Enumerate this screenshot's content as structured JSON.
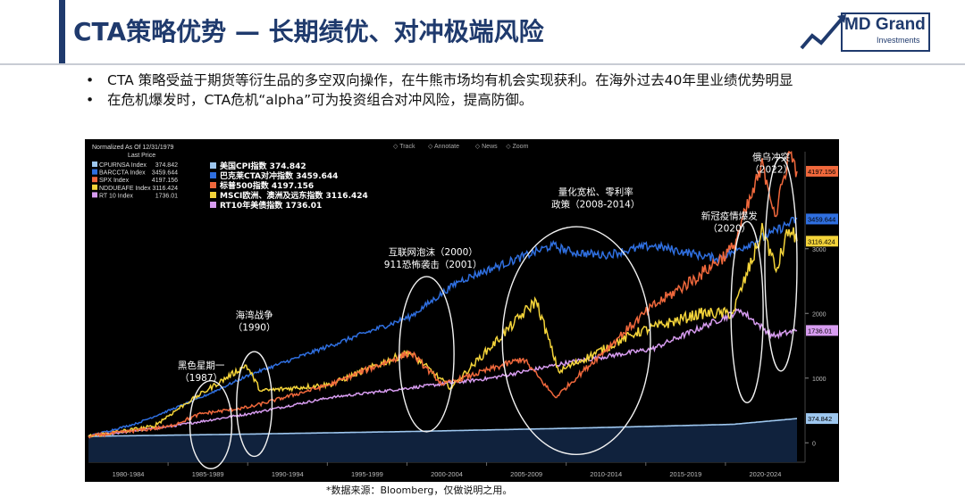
{
  "header": {
    "title": "CTA策略优势 — 长期绩优、对冲极端风险",
    "logo_text": "MD Grand",
    "logo_sub": "Investments"
  },
  "bullets": [
    "CTA 策略受益于期货等衍生品的多空双向操作，在牛熊市场均有机会实现获利。在海外过去40年里业绩优势明显",
    "在危机爆发时，CTA危机“alpha”可为投资组合对冲风险，提高防御。"
  ],
  "bullet_marker": "•",
  "source_note": "*数据来源：Bloomberg，仅做说明之用。",
  "chart_data": {
    "type": "line",
    "title": "",
    "normalized_note": "Normalized As Of 12/31/1979",
    "last_price_label": "Last Price",
    "toolbar": [
      "Track",
      "Annotate",
      "News",
      "Zoom"
    ],
    "x_tick_labels": [
      "1980-1984",
      "1985-1989",
      "1990-1994",
      "1995-1999",
      "2000-2004",
      "2005-2009",
      "2010-2014",
      "2015-2019",
      "2020-2024"
    ],
    "y_ticks": [
      0,
      1000,
      2000,
      3000
    ],
    "ylim": [
      -300,
      4500
    ],
    "xlim": [
      1980,
      2024.5
    ],
    "grid": false,
    "legend_small": [
      {
        "ticker": "CPURNSA Index",
        "value": "374.842",
        "color": "#9ec7ef"
      },
      {
        "ticker": "BARCCTA Index",
        "value": "3459.644",
        "color": "#2f6fe0"
      },
      {
        "ticker": "SPX Index",
        "value": "4197.156",
        "color": "#f0683c"
      },
      {
        "ticker": "NDDUEAFE Index",
        "value": "3116.424",
        "color": "#f4d43a"
      },
      {
        "ticker": "RT 10 Index",
        "value": "1736.01",
        "color": "#d79cf0"
      }
    ],
    "series": [
      {
        "name": "美国CPI指数",
        "last": "374.842",
        "color": "#9ec7ef",
        "x": [
          1980,
          1990,
          2000,
          2010,
          2020,
          2024
        ],
        "values": [
          100,
          135,
          175,
          225,
          285,
          374.842
        ]
      },
      {
        "name": "巴克莱CTA对冲指数",
        "last": "3459.644",
        "color": "#2f6fe0",
        "x": [
          1980,
          1983,
          1987,
          1990,
          1995,
          2000,
          2003,
          2008.8,
          2010,
          2012,
          2015,
          2017,
          2019,
          2020,
          2022.5,
          2024
        ],
        "values": [
          100,
          300,
          700,
          1050,
          1500,
          1950,
          2500,
          3050,
          2950,
          2900,
          3050,
          2950,
          2850,
          2950,
          3250,
          3459.644
        ]
      },
      {
        "name": "标普500指数",
        "last": "4197.156",
        "color": "#f0683c",
        "x": [
          1980,
          1985,
          1987,
          1990,
          1995,
          2000,
          2002,
          2007,
          2009,
          2013,
          2015,
          2018,
          2020,
          2021.9,
          2022.7,
          2023.5,
          2024
        ],
        "values": [
          100,
          250,
          450,
          550,
          900,
          1400,
          900,
          1300,
          700,
          1650,
          2100,
          2600,
          3000,
          4300,
          3500,
          4500,
          4197.156
        ]
      },
      {
        "name": "MSCI欧洲、澳洲及远东指数",
        "last": "3116.424",
        "color": "#f4d43a",
        "x": [
          1980,
          1984,
          1986,
          1989.8,
          1990.7,
          1995,
          1999.9,
          2002.5,
          2007.8,
          2009.2,
          2014,
          2018,
          2020,
          2021.9,
          2022.7,
          2023.5,
          2024
        ],
        "values": [
          100,
          250,
          600,
          1200,
          800,
          900,
          1400,
          850,
          2200,
          1100,
          1700,
          2000,
          2000,
          3300,
          2650,
          3300,
          3116.424
        ]
      },
      {
        "name": "RT10年美债指数",
        "last": "1736.01",
        "color": "#d79cf0",
        "x": [
          1980,
          1985,
          1990,
          1995,
          2000,
          2005,
          2010,
          2015,
          2020.5,
          2022.5,
          2024
        ],
        "values": [
          100,
          250,
          450,
          700,
          850,
          1000,
          1250,
          1450,
          2050,
          1650,
          1736.01
        ]
      }
    ],
    "annotations": [
      {
        "lines": [
          "黑色星期一",
          "（1987）"
        ],
        "x": 1987,
        "y": 1150,
        "ellipse": {
          "x": 1987.6,
          "y": 280,
          "rx": 1.3,
          "ry": 680
        }
      },
      {
        "lines": [
          "海湾战争",
          "（1990）"
        ],
        "x": 1990.3,
        "y": 1930,
        "ellipse": {
          "x": 1990.3,
          "y": 600,
          "rx": 1.1,
          "ry": 810
        }
      },
      {
        "lines": [
          "互联网泡沫（2000）",
          "911恐怖袭击（2001）"
        ],
        "x": 2001.4,
        "y": 2900,
        "ellipse": {
          "x": 2001.0,
          "y": 1370,
          "rx": 1.7,
          "ry": 1200
        }
      },
      {
        "lines": [
          "量化宽松、零利率",
          "政策（2008-2014）"
        ],
        "x": 2011.5,
        "y": 3830,
        "ellipse": {
          "x": 2010.3,
          "y": 1580,
          "rx": 4.6,
          "ry": 1760
        }
      },
      {
        "lines": [
          "新冠疫情爆发",
          "（2020）"
        ],
        "x": 2019.8,
        "y": 3460,
        "ellipse": {
          "x": 2020.9,
          "y": 2020,
          "rx": 1.0,
          "ry": 1400
        }
      },
      {
        "lines": [
          "俄乌冲突",
          "（2022）"
        ],
        "x": 2022.4,
        "y": 4370,
        "ellipse": {
          "x": 2023.0,
          "y": 2760,
          "rx": 1.0,
          "ry": 1650
        }
      }
    ]
  }
}
